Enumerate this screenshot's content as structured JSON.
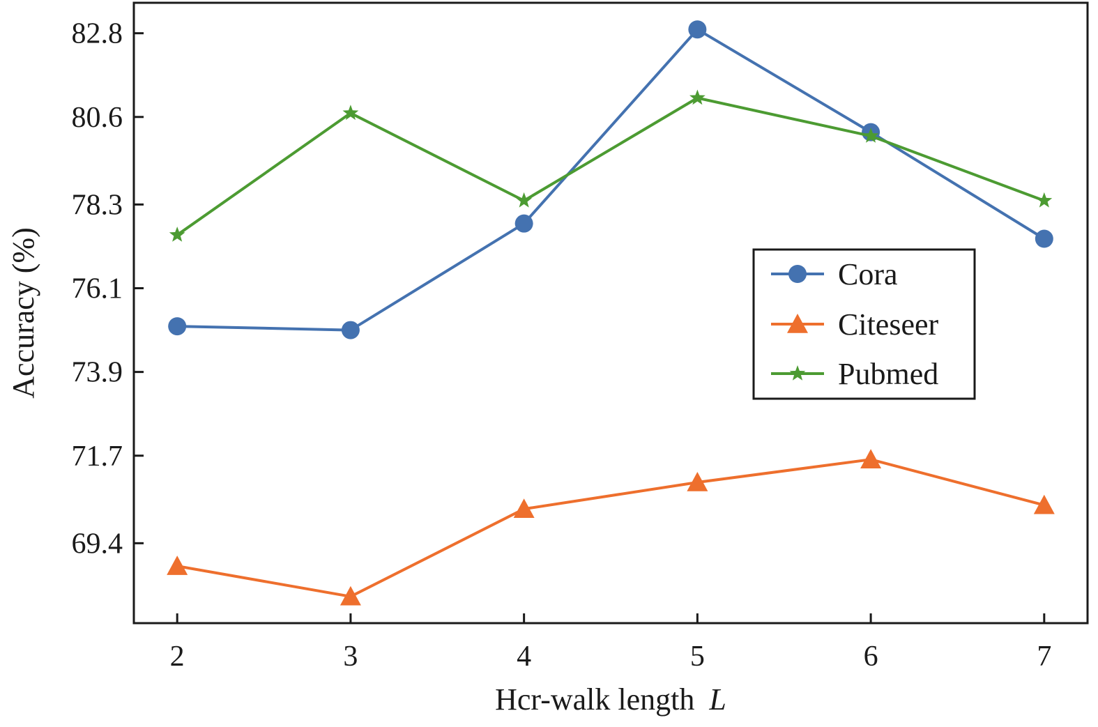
{
  "chart_data": {
    "type": "line",
    "title": "",
    "xlabel": "Hcr-walk length",
    "xlabel_var": "L",
    "ylabel": "Accuracy (%)",
    "x": [
      2,
      3,
      4,
      5,
      6,
      7
    ],
    "x_ticks": [
      "2",
      "3",
      "4",
      "5",
      "6",
      "7"
    ],
    "xlim": [
      1.75,
      7.25
    ],
    "y_ticks": [
      69.4,
      71.7,
      73.9,
      76.1,
      78.3,
      80.6,
      82.8
    ],
    "y_tick_labels": [
      "69.4",
      "71.7",
      "73.9",
      "76.1",
      "78.3",
      "80.6",
      "82.8"
    ],
    "ylim": [
      67.3,
      83.6
    ],
    "grid": false,
    "legend_position": "center-right",
    "series": [
      {
        "name": "Cora",
        "marker": "circle",
        "color": "#4472b0",
        "values": [
          75.1,
          75.0,
          77.8,
          82.9,
          80.2,
          77.4
        ]
      },
      {
        "name": "Citeseer",
        "marker": "triangle",
        "color": "#ee6f2d",
        "values": [
          68.8,
          68.0,
          70.3,
          71.0,
          71.6,
          70.4
        ]
      },
      {
        "name": "Pubmed",
        "marker": "star",
        "color": "#4c9b32",
        "values": [
          77.5,
          80.7,
          78.4,
          81.1,
          80.1,
          78.4
        ]
      }
    ]
  }
}
